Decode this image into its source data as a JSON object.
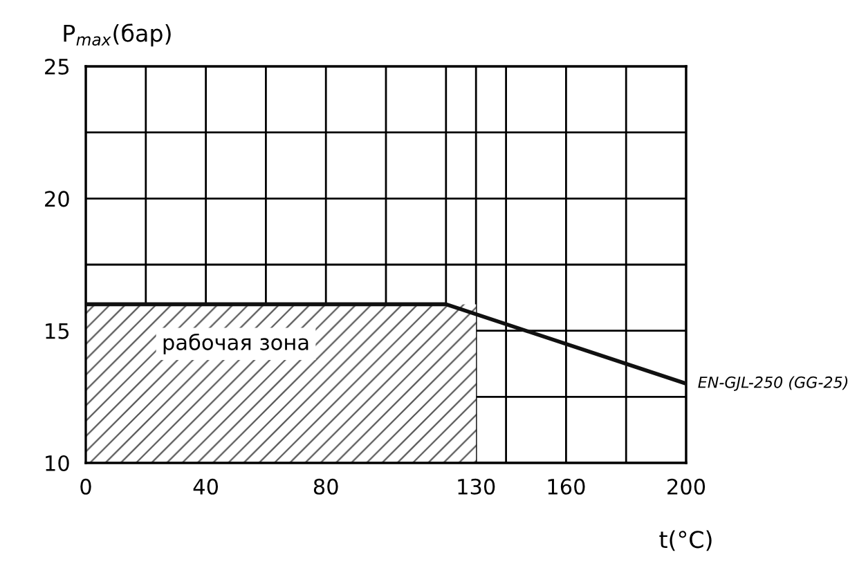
{
  "chart_data": {
    "type": "line",
    "xlabel": "t(°C)",
    "ylabel": "P$_{max}$(бар)",
    "xlim": [
      0,
      200
    ],
    "ylim": [
      10,
      25
    ],
    "xticks": [
      0,
      {
        "value": 20,
        "label": null
      },
      40,
      {
        "value": 60,
        "label": null
      },
      80,
      {
        "value": 100,
        "label": null
      },
      {
        "value": 120,
        "label": null
      },
      130,
      {
        "value": 140,
        "label": null
      },
      160,
      {
        "value": 180,
        "label": null
      },
      200
    ],
    "yticks": [
      10,
      {
        "value": 12.5,
        "label": null
      },
      15,
      {
        "value": 17.5,
        "label": null
      },
      20,
      {
        "value": 22.5,
        "label": null
      },
      25
    ],
    "grid": true,
    "legend": false,
    "marker": "none",
    "line_style": "solid",
    "series": [
      {
        "type": "area",
        "color": "#555555",
        "x": [
          0,
          130
        ],
        "values": [
          16,
          16
        ]
      },
      {
        "name": "EN-GJL-250 (GG-25)",
        "color": "#111111",
        "x": [
          0,
          120,
          200
        ],
        "values": [
          16,
          16,
          13
        ]
      }
    ],
    "annotations": [
      "рабочая зона"
    ]
  }
}
